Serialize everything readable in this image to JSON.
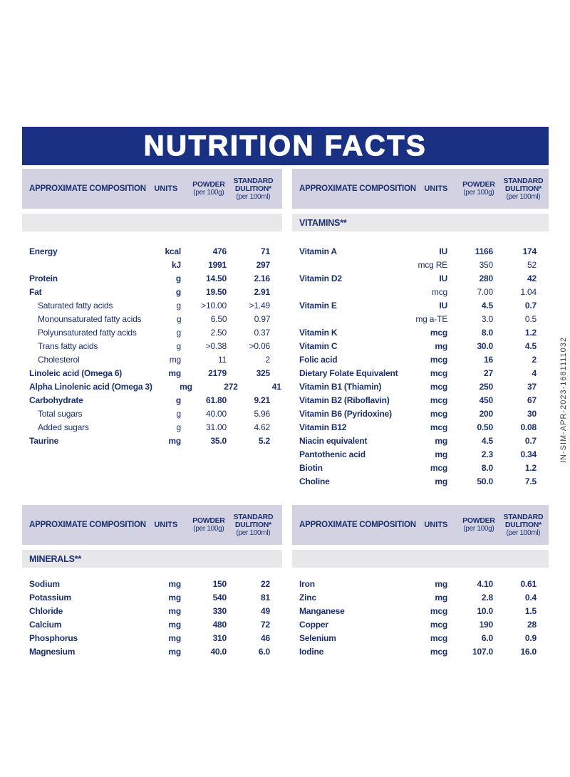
{
  "title": "NUTRITION FACTS",
  "side_code": "IN-SIM-APR-2023-1681111032",
  "colors": {
    "navy_bar": "#1a3183",
    "text_navy": "#1c3070",
    "header_bg": "#d2d2e3",
    "section_bg": "#e8e8ea"
  },
  "column_headers": {
    "composition": "APPROXIMATE COMPOSITION",
    "units": "UNITS",
    "powder": "POWDER",
    "powder_sub": "(per 100g)",
    "standard_line1": "STANDARD",
    "standard_line2": "DULITION*",
    "standard_sub": "(per 100ml)"
  },
  "tables": {
    "macros": {
      "section_label": "",
      "rows": [
        {
          "name": "Energy",
          "units": "kcal",
          "powder": "476",
          "standard": "71",
          "style": "bold"
        },
        {
          "name": "",
          "units": "kJ",
          "powder": "1991",
          "standard": "297",
          "style": "bold"
        },
        {
          "name": "Protein",
          "units": "g",
          "powder": "14.50",
          "standard": "2.16",
          "style": "bold"
        },
        {
          "name": "Fat",
          "units": "g",
          "powder": "19.50",
          "standard": "2.91",
          "style": "bold"
        },
        {
          "name": "Saturated fatty acids",
          "units": "g",
          "powder": ">10.00",
          "standard": ">1.49",
          "style": "sub"
        },
        {
          "name": "Monounsaturated fatty acids",
          "units": "g",
          "powder": "6.50",
          "standard": "0.97",
          "style": "sub"
        },
        {
          "name": "Polyunsaturated fatty acids",
          "units": "g",
          "powder": "2.50",
          "standard": "0.37",
          "style": "sub"
        },
        {
          "name": "Trans fatty acids",
          "units": "g",
          "powder": ">0.38",
          "standard": ">0.06",
          "style": "sub"
        },
        {
          "name": "Cholesterol",
          "units": "mg",
          "powder": "11",
          "standard": "2",
          "style": "sub"
        },
        {
          "name": "Linoleic acid (Omega 6)",
          "units": "mg",
          "powder": "2179",
          "standard": "325",
          "style": "bold"
        },
        {
          "name": "Alpha Linolenic acid (Omega 3)",
          "units": "mg",
          "powder": "272",
          "standard": "41",
          "style": "bold"
        },
        {
          "name": "Carbohydrate",
          "units": "g",
          "powder": "61.80",
          "standard": "9.21",
          "style": "bold"
        },
        {
          "name": "Total sugars",
          "units": "g",
          "powder": "40.00",
          "standard": "5.96",
          "style": "sub"
        },
        {
          "name": "Added sugars",
          "units": "g",
          "powder": "31.00",
          "standard": "4.62",
          "style": "sub"
        },
        {
          "name": "Taurine",
          "units": "mg",
          "powder": "35.0",
          "standard": "5.2",
          "style": "bold"
        }
      ]
    },
    "vitamins": {
      "section_label": "VITAMINS**",
      "rows": [
        {
          "name": "Vitamin A",
          "units": "IU",
          "powder": "1166",
          "standard": "174",
          "style": "bold"
        },
        {
          "name": "",
          "units": "mcg RE",
          "powder": "350",
          "standard": "52",
          "style": "reg"
        },
        {
          "name": "Vitamin D2",
          "units": "IU",
          "powder": "280",
          "standard": "42",
          "style": "bold"
        },
        {
          "name": "",
          "units": "mcg",
          "powder": "7.00",
          "standard": "1.04",
          "style": "reg"
        },
        {
          "name": "Vitamin E",
          "units": "IU",
          "powder": "4.5",
          "standard": "0.7",
          "style": "bold"
        },
        {
          "name": "",
          "units": "mg a-TE",
          "powder": "3.0",
          "standard": "0.5",
          "style": "reg"
        },
        {
          "name": "Vitamin K",
          "units": "mcg",
          "powder": "8.0",
          "standard": "1.2",
          "style": "bold"
        },
        {
          "name": "Vitamin C",
          "units": "mg",
          "powder": "30.0",
          "standard": "4.5",
          "style": "bold"
        },
        {
          "name": "Folic acid",
          "units": "mcg",
          "powder": "16",
          "standard": "2",
          "style": "bold"
        },
        {
          "name": "Dietary Folate Equivalent",
          "units": "mcg",
          "powder": "27",
          "standard": "4",
          "style": "bold"
        },
        {
          "name": "Vitamin B1 (Thiamin)",
          "units": "mcg",
          "powder": "250",
          "standard": "37",
          "style": "bold"
        },
        {
          "name": "Vitamin B2 (Riboflavin)",
          "units": "mcg",
          "powder": "450",
          "standard": "67",
          "style": "bold"
        },
        {
          "name": "Vitamin B6 (Pyridoxine)",
          "units": "mcg",
          "powder": "200",
          "standard": "30",
          "style": "bold"
        },
        {
          "name": "Vitamin B12",
          "units": "mcg",
          "powder": "0.50",
          "standard": "0.08",
          "style": "bold"
        },
        {
          "name": "Niacin equivalent",
          "units": "mg",
          "powder": "4.5",
          "standard": "0.7",
          "style": "bold"
        },
        {
          "name": "Pantothenic acid",
          "units": "mg",
          "powder": "2.3",
          "standard": "0.34",
          "style": "bold"
        },
        {
          "name": "Biotin",
          "units": "mcg",
          "powder": "8.0",
          "standard": "1.2",
          "style": "bold"
        },
        {
          "name": "Choline",
          "units": "mg",
          "powder": "50.0",
          "standard": "7.5",
          "style": "bold"
        }
      ]
    },
    "minerals": {
      "section_label": "MINERALS**",
      "rows": [
        {
          "name": "Sodium",
          "units": "mg",
          "powder": "150",
          "standard": "22",
          "style": "bold"
        },
        {
          "name": "Potassium",
          "units": "mg",
          "powder": "540",
          "standard": "81",
          "style": "bold"
        },
        {
          "name": "Chloride",
          "units": "mg",
          "powder": "330",
          "standard": "49",
          "style": "bold"
        },
        {
          "name": "Calcium",
          "units": "mg",
          "powder": "480",
          "standard": "72",
          "style": "bold"
        },
        {
          "name": "Phosphorus",
          "units": "mg",
          "powder": "310",
          "standard": "46",
          "style": "bold"
        },
        {
          "name": "Magnesium",
          "units": "mg",
          "powder": "40.0",
          "standard": "6.0",
          "style": "bold"
        }
      ]
    },
    "trace": {
      "section_label": "",
      "rows": [
        {
          "name": "Iron",
          "units": "mg",
          "powder": "4.10",
          "standard": "0.61",
          "style": "bold"
        },
        {
          "name": "Zinc",
          "units": "mg",
          "powder": "2.8",
          "standard": "0.4",
          "style": "bold"
        },
        {
          "name": "Manganese",
          "units": "mcg",
          "powder": "10.0",
          "standard": "1.5",
          "style": "bold"
        },
        {
          "name": "Copper",
          "units": "mcg",
          "powder": "190",
          "standard": "28",
          "style": "bold"
        },
        {
          "name": "Selenium",
          "units": "mcg",
          "powder": "6.0",
          "standard": "0.9",
          "style": "bold"
        },
        {
          "name": "Iodine",
          "units": "mcg",
          "powder": "107.0",
          "standard": "16.0",
          "style": "bold"
        }
      ]
    }
  }
}
